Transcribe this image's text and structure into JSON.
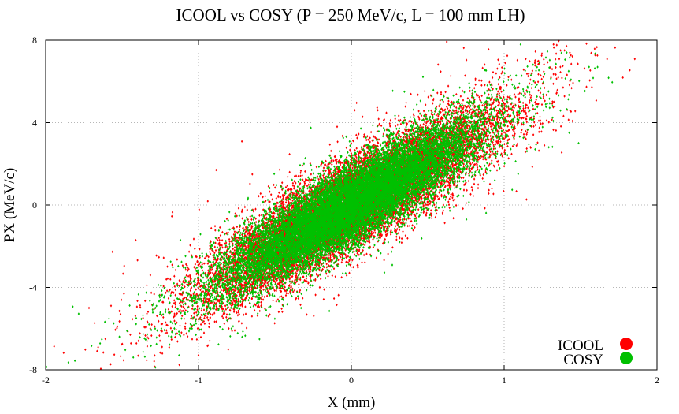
{
  "chart_data": {
    "type": "scatter",
    "title": "ICOOL vs COSY (P = 250 MeV/c, L = 100 mm LH)",
    "xlabel": "X (mm)",
    "ylabel": "PX (MeV/c)",
    "xlim": [
      -2,
      2
    ],
    "ylim": [
      -8,
      8
    ],
    "xticks": [
      -2,
      -1,
      0,
      1,
      2
    ],
    "yticks": [
      -8,
      -4,
      0,
      4,
      8
    ],
    "grid": true,
    "legend_position": "bottom-right",
    "distribution": {
      "x_mean": 0,
      "y_mean": 0,
      "x_std": 0.42,
      "y_std": 2.0,
      "correlation": 0.88
    },
    "series": [
      {
        "name": "ICOOL",
        "color": "#ff0000",
        "points": 15000
      },
      {
        "name": "COSY",
        "color": "#00c000",
        "points": 15000
      }
    ]
  }
}
